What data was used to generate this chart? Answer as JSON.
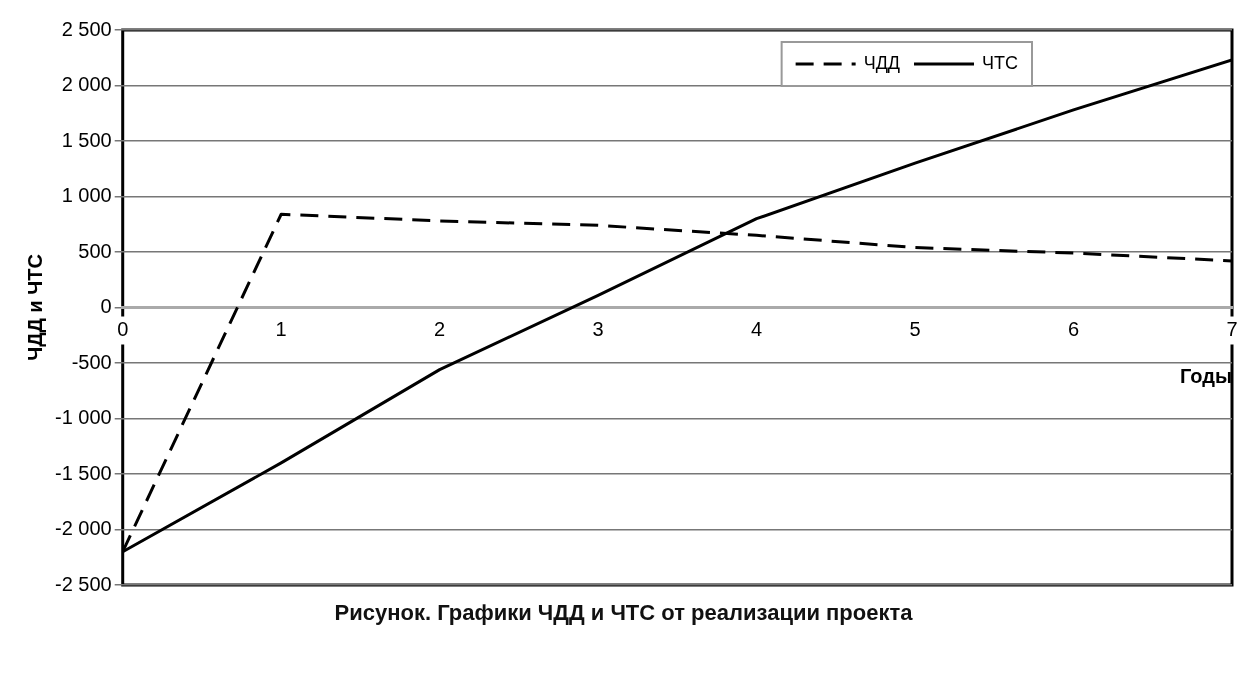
{
  "chart_data": {
    "type": "line",
    "x": [
      0,
      1,
      2,
      3,
      4,
      5,
      6,
      7
    ],
    "series": [
      {
        "name": "ЧДД",
        "color": "#000000",
        "line_style": "dashed",
        "values": [
          -2200,
          840,
          780,
          740,
          650,
          540,
          490,
          420
        ]
      },
      {
        "name": "ЧТС",
        "color": "#000000",
        "line_style": "solid",
        "values": [
          -2200,
          -1400,
          -560,
          110,
          800,
          1300,
          1780,
          2230
        ]
      }
    ],
    "xlim": [
      0,
      7
    ],
    "xticks": [
      0,
      1,
      2,
      3,
      4,
      5,
      6,
      7
    ],
    "ylim": [
      -2500,
      2500
    ],
    "yticks": [
      {
        "value": -2500,
        "label": "-2 500"
      },
      {
        "value": -2000,
        "label": "-2 000"
      },
      {
        "value": -1500,
        "label": "-1 500"
      },
      {
        "value": -1000,
        "label": "-1 000"
      },
      {
        "value": -500,
        "label": "-500"
      },
      0,
      500,
      {
        "value": 1000,
        "label": "1 000"
      },
      {
        "value": 1500,
        "label": "1 500"
      },
      {
        "value": 2000,
        "label": "2 000"
      },
      {
        "value": 2500,
        "label": "2 500"
      }
    ],
    "xlabel": "Годы",
    "ylabel": "ЧДД и ЧТС",
    "annotations": [
      "Рисунок. Графики ЧДД и ЧТС от реализации проекта"
    ],
    "grid": "y",
    "legend": "top right",
    "marker": "none"
  }
}
